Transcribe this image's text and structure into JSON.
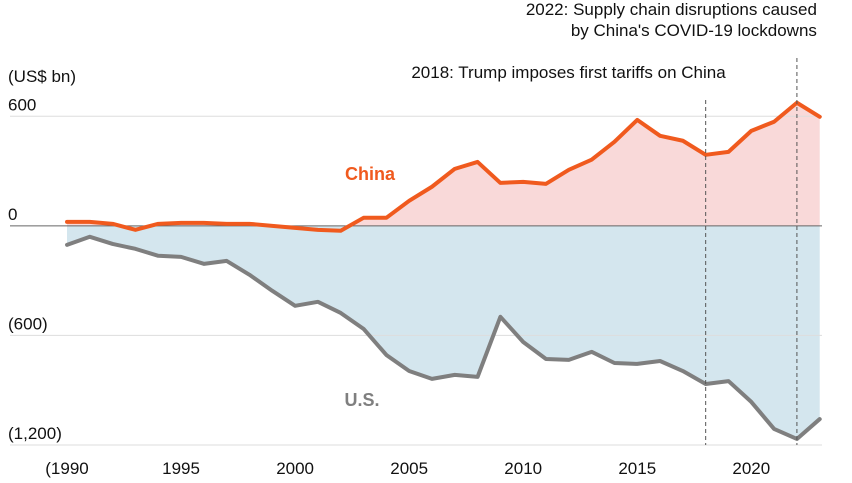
{
  "chart_data": {
    "type": "area",
    "y_label": "(US$ bn)",
    "x": [
      1990,
      1991,
      1992,
      1993,
      1994,
      1995,
      1996,
      1997,
      1998,
      1999,
      2000,
      2001,
      2002,
      2003,
      2004,
      2005,
      2006,
      2007,
      2008,
      2009,
      2010,
      2011,
      2012,
      2013,
      2014,
      2015,
      2016,
      2017,
      2018,
      2019,
      2020,
      2021,
      2022,
      2023
    ],
    "series": [
      {
        "name": "China",
        "color": "#f05a1e",
        "fill": "#f9d9d9",
        "values": [
          22,
          22,
          11,
          -22,
          11,
          16,
          16,
          11,
          11,
          0,
          -11,
          -22,
          -27,
          44,
          44,
          137,
          214,
          312,
          350,
          235,
          241,
          230,
          307,
          362,
          460,
          580,
          493,
          466,
          389,
          405,
          520,
          570,
          674,
          597
        ]
      },
      {
        "name": "U.S.",
        "color": "#7f7f7f",
        "fill": "#d4e6ee",
        "values": [
          -104,
          -60,
          -99,
          -126,
          -164,
          -170,
          -208,
          -192,
          -268,
          -356,
          -438,
          -416,
          -477,
          -564,
          -707,
          -795,
          -838,
          -816,
          -827,
          -498,
          -636,
          -729,
          -734,
          -690,
          -751,
          -756,
          -740,
          -795,
          -866,
          -850,
          -964,
          -1112,
          -1167,
          -1058
        ]
      }
    ],
    "xlim": [
      1987.5,
      2023.1
    ],
    "ylim": [
      -1200,
      700
    ],
    "xticks": [
      {
        "value": 1990,
        "label": "(1990"
      },
      1995,
      2000,
      2005,
      2010,
      2015,
      2020
    ],
    "yticks": [
      {
        "value": -1200,
        "label": "(1,200)"
      },
      {
        "value": -600,
        "label": "(600)"
      },
      0,
      600
    ],
    "grid": true,
    "annotations": [
      {
        "x": 2018,
        "lines": [
          "2018: Trump imposes first tariffs on China"
        ]
      },
      {
        "x": 2022,
        "lines": [
          "2022: Supply chain disruptions caused",
          "by China's COVID-19 lockdowns"
        ]
      }
    ]
  }
}
